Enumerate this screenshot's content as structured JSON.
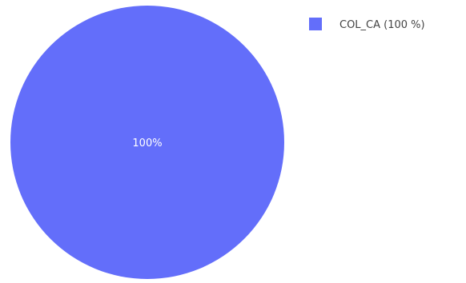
{
  "chart_data": {
    "type": "pie",
    "title": "",
    "slices": [
      {
        "label": "COL_CA",
        "value": 100,
        "percent_label": "100%",
        "legend_label": "COL_CA (100 %)",
        "color": "#636EFA"
      }
    ],
    "legend": {
      "placement": "top-right"
    }
  }
}
